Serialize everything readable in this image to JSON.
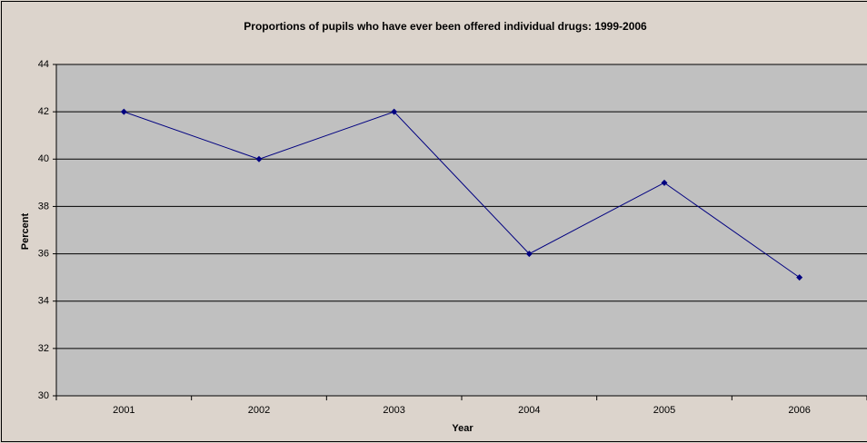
{
  "chart_data": {
    "type": "line",
    "title": "Proportions of pupils who have ever been offered individual drugs: 1999-2006",
    "x_label": "Year",
    "y_label": "Percent",
    "categories": [
      "2001",
      "2002",
      "2003",
      "2004",
      "2005",
      "2006"
    ],
    "series": [
      {
        "name": "Percent",
        "color": "#000080",
        "values": [
          42,
          40,
          42,
          36,
          39,
          35
        ]
      }
    ],
    "ylim": [
      30,
      44
    ],
    "yticks": [
      30,
      32,
      34,
      36,
      38,
      40,
      42,
      44
    ],
    "grid": true
  }
}
